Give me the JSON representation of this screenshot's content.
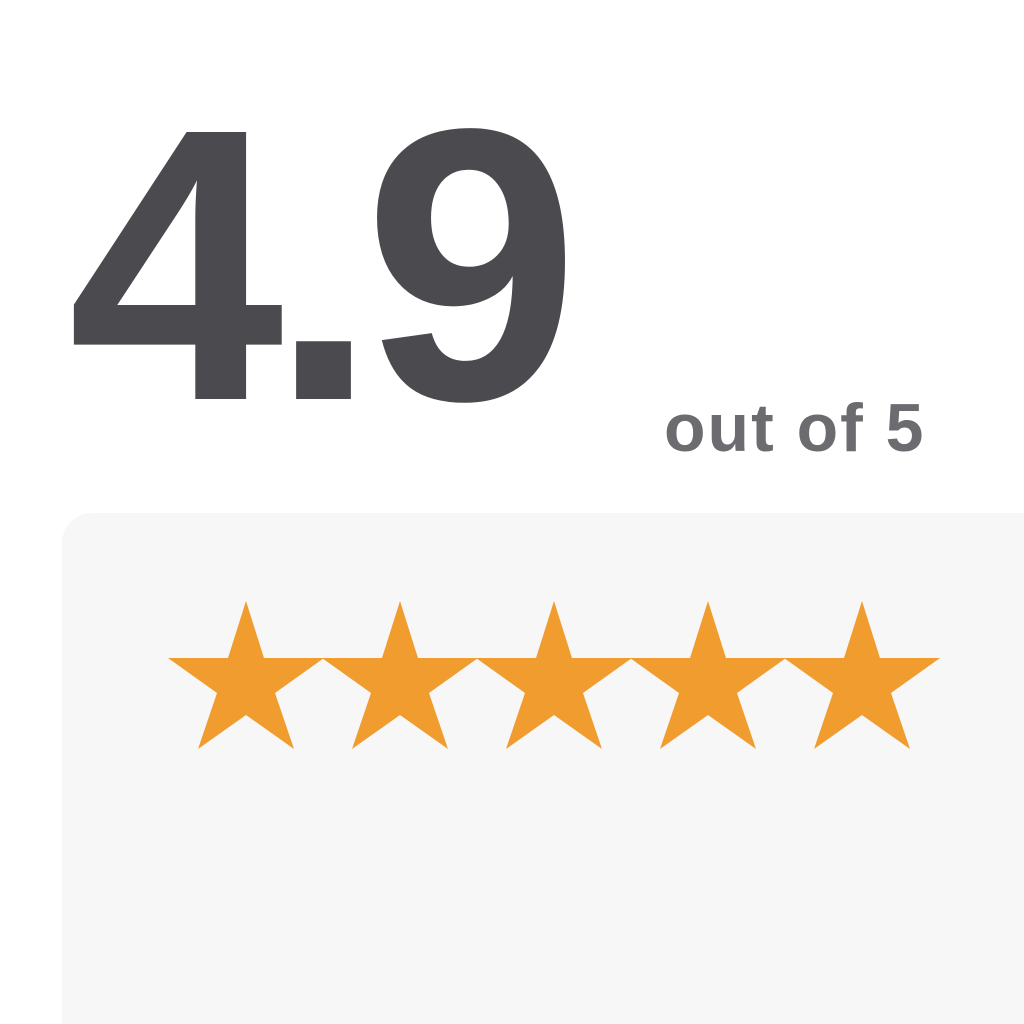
{
  "rating": {
    "value": "4.9",
    "scale_label": "out of 5",
    "stars_filled": 5,
    "stars_total": 5,
    "star_icon": "star-icon"
  },
  "colors": {
    "rating_text": "#4a4a4f",
    "scale_text": "#6b6b70",
    "star_fill": "#f09c2e",
    "panel_bg": "#f7f7f7"
  }
}
